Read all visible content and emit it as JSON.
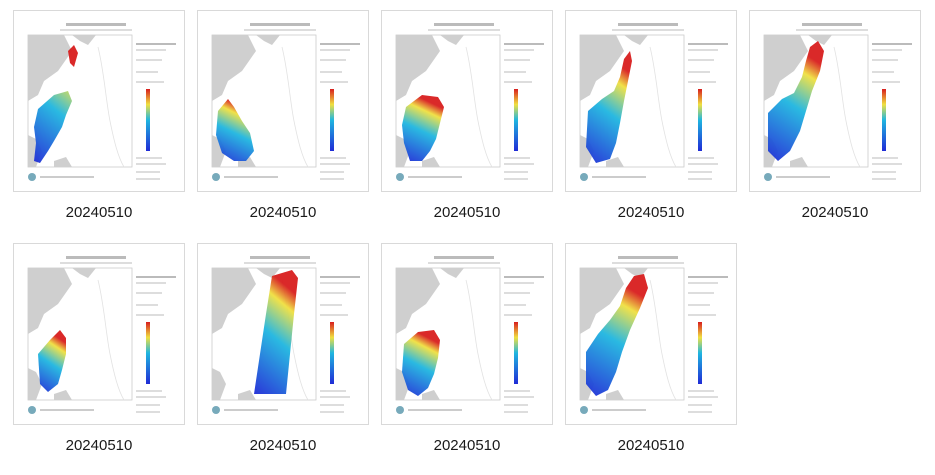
{
  "items": [
    {
      "label": "20240510",
      "variant": "swath-a"
    },
    {
      "label": "20240510",
      "variant": "swath-b"
    },
    {
      "label": "20240510",
      "variant": "swath-c"
    },
    {
      "label": "20240510",
      "variant": "swath-d"
    },
    {
      "label": "20240510",
      "variant": "swath-e"
    },
    {
      "label": "20240510",
      "variant": "swath-f"
    },
    {
      "label": "20240510",
      "variant": "swath-g"
    },
    {
      "label": "20240510",
      "variant": "swath-h"
    },
    {
      "label": "20240510",
      "variant": "swath-i"
    }
  ],
  "colors": {
    "land": "#cfcfcf",
    "border": "#d9d9d9",
    "wave_low": "#1f2bd6",
    "wave_mid": "#1fb6e0",
    "wave_high": "#f0e040",
    "wave_peak": "#d81e1e"
  }
}
